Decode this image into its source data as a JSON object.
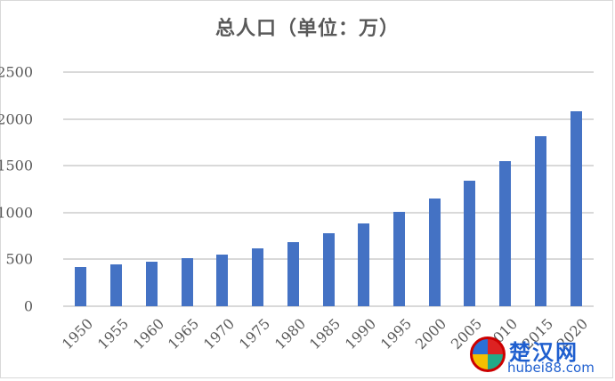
{
  "title": "总人口（单位：万）",
  "colors": {
    "bar": "#4472c4",
    "grid": "#d9d9d9",
    "text": "#595959"
  },
  "y_ticks": [
    "0",
    "500",
    "1000",
    "1500",
    "2000",
    "2500"
  ],
  "watermark": {
    "name": "楚汉网",
    "url": "hubei88.com"
  },
  "chart_data": {
    "type": "bar",
    "title": "总人口（单位：万）",
    "xlabel": "",
    "ylabel": "",
    "ylim": [
      0,
      2500
    ],
    "yticks": [
      0,
      500,
      1000,
      1500,
      2000,
      2500
    ],
    "grid": true,
    "legend": "none",
    "categories": [
      "1950",
      "1955",
      "1960",
      "1965",
      "1970",
      "1975",
      "1980",
      "1985",
      "1990",
      "1995",
      "2000",
      "2005",
      "2010",
      "2015",
      "2020"
    ],
    "values": [
      421,
      450,
      478,
      516,
      554,
      615,
      682,
      777,
      882,
      1005,
      1155,
      1336,
      1554,
      1814,
      2086
    ]
  }
}
